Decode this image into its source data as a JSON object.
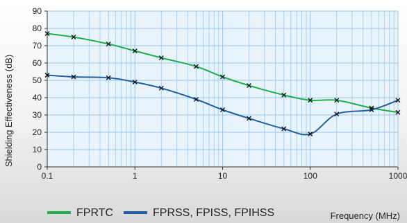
{
  "chart_data": {
    "type": "line",
    "title": "",
    "xlabel": "Frequency (MHz)",
    "ylabel": "Shielding Effectiveness (dB)",
    "x_scale": "log",
    "xlim": [
      0.1,
      1000
    ],
    "ylim": [
      0,
      90
    ],
    "x_ticks": [
      0.1,
      1,
      10,
      100,
      1000
    ],
    "x_tick_labels": [
      "0.1",
      "1",
      "10",
      "100",
      "1000"
    ],
    "y_ticks": [
      0,
      10,
      20,
      30,
      40,
      50,
      60,
      70,
      80,
      90
    ],
    "y_tick_labels": [
      "0",
      "10",
      "20",
      "30",
      "40",
      "50",
      "60",
      "70",
      "80",
      "90"
    ],
    "grid": true,
    "plot_background": "#e8f3fb",
    "grid_color": "#9ec7e6",
    "legend_position": "bottom",
    "series": [
      {
        "name": "FPRTC",
        "color": "#1db04a",
        "marker": "x",
        "x": [
          0.1,
          0.2,
          0.5,
          1,
          2,
          5,
          10,
          20,
          50,
          100,
          200,
          500,
          1000
        ],
        "y": [
          77,
          75,
          71,
          67,
          63,
          58,
          52,
          47,
          41.5,
          38.5,
          38.5,
          34,
          31.5
        ]
      },
      {
        "name": "FPRSS, FPISS, FPIHSS",
        "color": "#1f5fa6",
        "marker": "x",
        "x": [
          0.1,
          0.2,
          0.5,
          1,
          2,
          5,
          10,
          20,
          50,
          100,
          200,
          500,
          1000
        ],
        "y": [
          53,
          52,
          51.5,
          49,
          45.5,
          39,
          33,
          28,
          22,
          19,
          30.5,
          33,
          38.5
        ]
      }
    ]
  }
}
